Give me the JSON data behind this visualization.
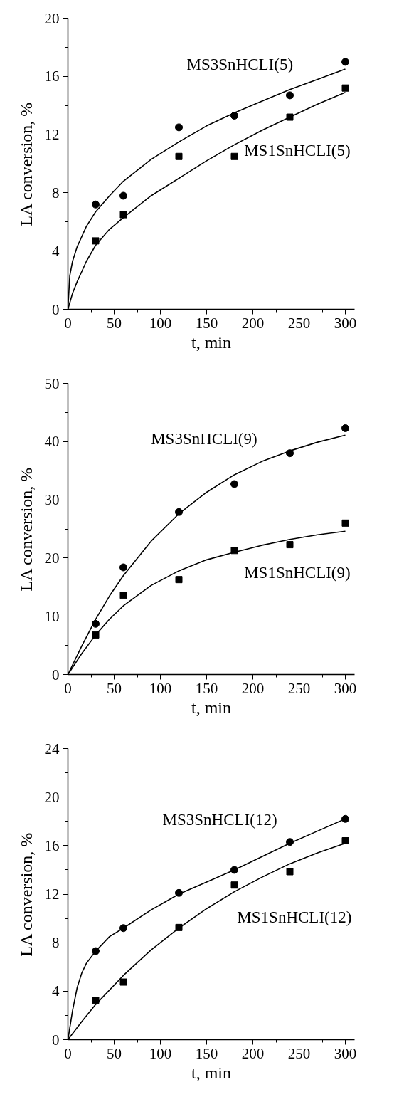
{
  "chart_data": [
    {
      "type": "scatter",
      "xlabel": "t, min",
      "ylabel": "LA conversion, %",
      "xlim": [
        0,
        310
      ],
      "ylim": [
        0,
        20
      ],
      "xticks": [
        0,
        50,
        100,
        150,
        200,
        250,
        300
      ],
      "yticks": [
        0,
        4,
        8,
        12,
        16,
        20
      ],
      "series": [
        {
          "marker": "circle",
          "color": "#000000",
          "x": [
            30,
            60,
            120,
            180,
            240,
            300
          ],
          "values": [
            7.2,
            7.8,
            12.5,
            13.3,
            14.7,
            17.0
          ]
        },
        {
          "marker": "square",
          "color": "#000000",
          "x": [
            30,
            60,
            120,
            180,
            240,
            300
          ],
          "values": [
            4.7,
            6.5,
            10.5,
            10.5,
            13.2,
            15.2
          ]
        },
        {
          "type": "line",
          "color": "#000000",
          "x": [
            0,
            2,
            5,
            10,
            20,
            30,
            45,
            60,
            90,
            120,
            150,
            180,
            210,
            240,
            270,
            300
          ],
          "values": [
            0,
            2.3,
            3.3,
            4.3,
            5.7,
            6.7,
            7.8,
            8.8,
            10.3,
            11.5,
            12.6,
            13.5,
            14.3,
            15.1,
            15.8,
            16.5
          ]
        },
        {
          "type": "line",
          "color": "#000000",
          "x": [
            0,
            5,
            10,
            20,
            30,
            45,
            60,
            90,
            120,
            150,
            180,
            210,
            240,
            270,
            300
          ],
          "values": [
            0,
            1.1,
            1.9,
            3.3,
            4.4,
            5.5,
            6.3,
            7.8,
            9.0,
            10.2,
            11.3,
            12.3,
            13.2,
            14.1,
            14.9
          ]
        }
      ],
      "annotations": [
        "MS3SnHCLI(5)",
        "MS1SnHCLI(5)"
      ]
    },
    {
      "type": "scatter",
      "xlabel": "t, min",
      "ylabel": "LA conversion, %",
      "xlim": [
        0,
        310
      ],
      "ylim": [
        0,
        50
      ],
      "xticks": [
        0,
        50,
        100,
        150,
        200,
        250,
        300
      ],
      "yticks": [
        0,
        10,
        20,
        30,
        40,
        50
      ],
      "series": [
        {
          "marker": "circle",
          "color": "#000000",
          "x": [
            30,
            60,
            120,
            180,
            240,
            300
          ],
          "values": [
            8.7,
            18.4,
            27.9,
            32.7,
            38.0,
            42.3
          ]
        },
        {
          "marker": "square",
          "color": "#000000",
          "x": [
            30,
            60,
            120,
            180,
            240,
            300
          ],
          "values": [
            6.8,
            13.6,
            16.3,
            21.3,
            22.3,
            26.0
          ]
        },
        {
          "type": "line",
          "color": "#000000",
          "x": [
            0,
            15,
            30,
            45,
            60,
            90,
            120,
            150,
            180,
            210,
            240,
            270,
            300
          ],
          "values": [
            0,
            4.9,
            9.5,
            13.5,
            17.0,
            22.9,
            27.6,
            31.3,
            34.3,
            36.6,
            38.4,
            39.9,
            41.1
          ]
        },
        {
          "type": "line",
          "color": "#000000",
          "x": [
            0,
            15,
            30,
            45,
            60,
            90,
            120,
            150,
            180,
            210,
            240,
            270,
            300
          ],
          "values": [
            0,
            3.6,
            6.8,
            9.5,
            11.8,
            15.3,
            17.8,
            19.7,
            21.0,
            22.2,
            23.2,
            24.0,
            24.6
          ]
        }
      ],
      "annotations": [
        "MS3SnHCLI(9)",
        "MS1SnHCLI(9)"
      ]
    },
    {
      "type": "scatter",
      "xlabel": "t, min",
      "ylabel": "LA conversion, %",
      "xlim": [
        0,
        310
      ],
      "ylim": [
        0,
        24
      ],
      "xticks": [
        0,
        50,
        100,
        150,
        200,
        250,
        300
      ],
      "yticks": [
        0,
        4,
        8,
        12,
        16,
        20,
        24
      ],
      "series": [
        {
          "marker": "circle",
          "color": "#000000",
          "x": [
            30,
            60,
            120,
            180,
            240,
            300
          ],
          "values": [
            7.3,
            9.2,
            12.1,
            14.0,
            16.3,
            18.2
          ]
        },
        {
          "marker": "square",
          "color": "#000000",
          "x": [
            30,
            60,
            120,
            180,
            240,
            300
          ],
          "values": [
            3.25,
            4.75,
            9.25,
            12.75,
            13.85,
            16.4
          ]
        },
        {
          "type": "line",
          "color": "#000000",
          "x": [
            0,
            5,
            10,
            15,
            20,
            30,
            45,
            60,
            90,
            120,
            150,
            180,
            210,
            240,
            270,
            300
          ],
          "values": [
            0,
            2.4,
            4.3,
            5.5,
            6.3,
            7.3,
            8.5,
            9.2,
            10.7,
            12.0,
            13.0,
            14.0,
            15.1,
            16.2,
            17.2,
            18.2
          ]
        },
        {
          "type": "line",
          "color": "#000000",
          "x": [
            0,
            15,
            30,
            60,
            90,
            120,
            150,
            180,
            210,
            240,
            270,
            300
          ],
          "values": [
            0,
            1.5,
            2.9,
            5.3,
            7.4,
            9.2,
            10.8,
            12.2,
            13.4,
            14.5,
            15.4,
            16.2
          ]
        }
      ],
      "annotations": [
        "MS3SnHCLI(12)",
        "MS1SnHCLI(12)"
      ]
    }
  ]
}
